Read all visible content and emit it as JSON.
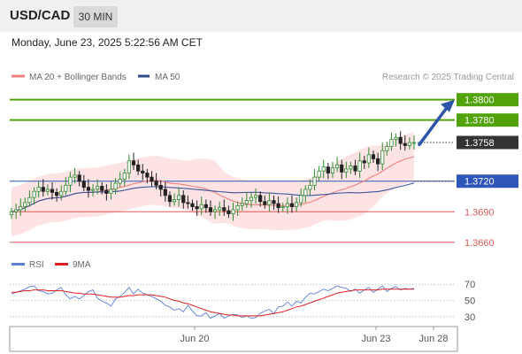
{
  "header": {
    "pair": "USD/CAD",
    "timeframe": "30 MIN"
  },
  "datetime": "Monday, June 23, 2025 5:22:56 AM CET",
  "legend": {
    "ma20_bb": "MA 20 + Bollinger Bands",
    "ma50": "MA 50",
    "credit": "Research © 2025 Trading Central"
  },
  "rsi_legend": {
    "rsi": "RSI",
    "ma9": "9MA"
  },
  "colors": {
    "green": "#52a30a",
    "blue": "#2e55b8",
    "red": "#e05a5a",
    "dark": "#333333",
    "band": "#fcdada",
    "ma20": "#f08080",
    "ma50": "#3a55a0",
    "up": "#2e8b2e",
    "rsi": "#5a7fd6",
    "rsi_ma": "#e02020"
  },
  "chart_data": [
    {
      "type": "candlestick",
      "title": "USD/CAD 30 MIN",
      "ylim": [
        1.3652,
        1.3811
      ],
      "x_ticks": [
        "Jun 20",
        "Jun 23",
        "Jun 28"
      ],
      "current_price": "1.3758",
      "levels": [
        {
          "label": "1.3800",
          "value": 1.38,
          "kind": "resistance"
        },
        {
          "label": "1.3780",
          "value": 1.378,
          "kind": "resistance"
        },
        {
          "label": "1.3758",
          "value": 1.3758,
          "kind": "current"
        },
        {
          "label": "1.3720",
          "value": 1.372,
          "kind": "pivot"
        },
        {
          "label": "1.3690",
          "value": 1.369,
          "kind": "support"
        },
        {
          "label": "1.3660",
          "value": 1.366,
          "kind": "support"
        }
      ],
      "closes": [
        1.369,
        1.3692,
        1.3695,
        1.3699,
        1.3704,
        1.371,
        1.3714,
        1.371,
        1.3712,
        1.3709,
        1.3706,
        1.371,
        1.3716,
        1.3724,
        1.3726,
        1.372,
        1.3714,
        1.3711,
        1.3712,
        1.3715,
        1.3711,
        1.3708,
        1.3712,
        1.3718,
        1.3722,
        1.3728,
        1.374,
        1.3736,
        1.373,
        1.3728,
        1.3724,
        1.372,
        1.3716,
        1.3712,
        1.3706,
        1.37,
        1.3702,
        1.3706,
        1.3699,
        1.3698,
        1.3695,
        1.3693,
        1.3697,
        1.3694,
        1.369,
        1.3692,
        1.3694,
        1.3691,
        1.3688,
        1.3692,
        1.3696,
        1.3698,
        1.3701,
        1.3704,
        1.3706,
        1.37,
        1.3697,
        1.3701,
        1.3698,
        1.3694,
        1.3695,
        1.3698,
        1.3695,
        1.3699,
        1.3706,
        1.3712,
        1.3716,
        1.3724,
        1.373,
        1.3734,
        1.3728,
        1.3733,
        1.3736,
        1.3729,
        1.3732,
        1.3735,
        1.373,
        1.374,
        1.3738,
        1.3746,
        1.3742,
        1.3737,
        1.375,
        1.3754,
        1.3761,
        1.3763,
        1.3757,
        1.3755,
        1.3758,
        1.3758
      ],
      "ma20_last": 1.3741,
      "ma50_last": 1.372
    },
    {
      "type": "line",
      "title": "RSI",
      "ylim": [
        20,
        80
      ],
      "y_ticks": [
        70,
        50,
        30
      ],
      "series": [
        {
          "name": "RSI",
          "values": [
            58,
            60,
            62,
            64,
            67,
            68,
            62,
            61,
            58,
            59,
            63,
            66,
            57,
            52,
            55,
            52,
            56,
            61,
            63,
            53,
            49,
            47,
            43,
            52,
            55,
            60,
            66,
            58,
            64,
            59,
            57,
            55,
            52,
            49,
            44,
            42,
            38,
            40,
            36,
            44,
            37,
            31,
            31,
            35,
            28,
            31,
            34,
            28,
            31,
            33,
            32,
            29,
            31,
            28,
            29,
            34,
            37,
            39,
            34,
            42,
            43,
            48,
            43,
            49,
            47,
            54,
            59,
            58,
            61,
            64,
            62,
            65,
            68,
            66,
            65,
            61,
            64,
            59,
            63,
            66,
            60,
            64,
            68,
            61,
            65,
            67,
            63,
            65,
            64,
            65
          ]
        },
        {
          "name": "9MA",
          "values": [
            60,
            60,
            61,
            62,
            62,
            63,
            63,
            63,
            62,
            62,
            62,
            62,
            61,
            60,
            59,
            59,
            58,
            58,
            58,
            57,
            56,
            55,
            54,
            54,
            54,
            55,
            56,
            56,
            57,
            57,
            57,
            57,
            56,
            55,
            54,
            52,
            50,
            49,
            47,
            46,
            44,
            42,
            40,
            38,
            36,
            35,
            34,
            33,
            32,
            32,
            31,
            31,
            31,
            31,
            31,
            31,
            32,
            33,
            34,
            35,
            36,
            38,
            40,
            42,
            43,
            45,
            47,
            49,
            51,
            53,
            55,
            57,
            59,
            60,
            61,
            62,
            63,
            63,
            63,
            63,
            63,
            63,
            64,
            64,
            64,
            64,
            64,
            64,
            64,
            64
          ]
        }
      ]
    }
  ]
}
